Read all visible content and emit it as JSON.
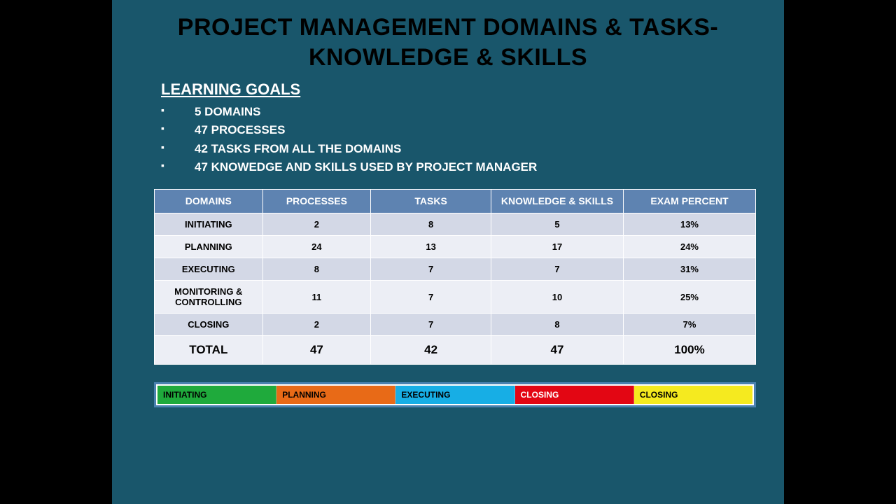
{
  "title": "PROJECT MANAGEMENT DOMAINS & TASKS- KNOWLEDGE & SKILLS",
  "goals": {
    "heading": "LEARNING GOALS",
    "items": [
      "5 DOMAINS",
      "47 PROCESSES",
      "42 TASKS FROM ALL THE DOMAINS",
      "47 KNOWEDGE AND SKILLS USED BY PROJECT MANAGER"
    ]
  },
  "table": {
    "header_bg": "#5e83b1",
    "header_fg": "#ffffff",
    "row_odd_bg": "#d3d8e6",
    "row_even_bg": "#eceef5",
    "columns": [
      "DOMAINS",
      "PROCESSES",
      "TASKS",
      "KNOWLEDGE & SKILLS",
      "EXAM PERCENT"
    ],
    "rows": [
      [
        "INITIATING",
        "2",
        "8",
        "5",
        "13%"
      ],
      [
        "PLANNING",
        "24",
        "13",
        "17",
        "24%"
      ],
      [
        "EXECUTING",
        "8",
        "7",
        "7",
        "31%"
      ],
      [
        "MONITORING & CONTROLLING",
        "11",
        "7",
        "10",
        "25%"
      ],
      [
        "CLOSING",
        "2",
        "7",
        "8",
        "7%"
      ]
    ],
    "total": [
      "TOTAL",
      "47",
      "42",
      "47",
      "100%"
    ]
  },
  "footer": {
    "border_color": "#4a82b0",
    "segments": [
      {
        "label": "INITIATING",
        "bg": "#1faa3c",
        "fg": "#000000"
      },
      {
        "label": "PLANNING",
        "bg": "#e86a17",
        "fg": "#000000"
      },
      {
        "label": "EXECUTING",
        "bg": "#17aee5",
        "fg": "#000000"
      },
      {
        "label": "CLOSING",
        "bg": "#e30613",
        "fg": "#ffffff"
      },
      {
        "label": "CLOSING",
        "bg": "#f5ea1f",
        "fg": "#000000"
      }
    ]
  },
  "colors": {
    "page_bg": "#000000",
    "slide_bg": "#19566b",
    "title_fg": "#000000",
    "text_fg": "#ffffff"
  }
}
